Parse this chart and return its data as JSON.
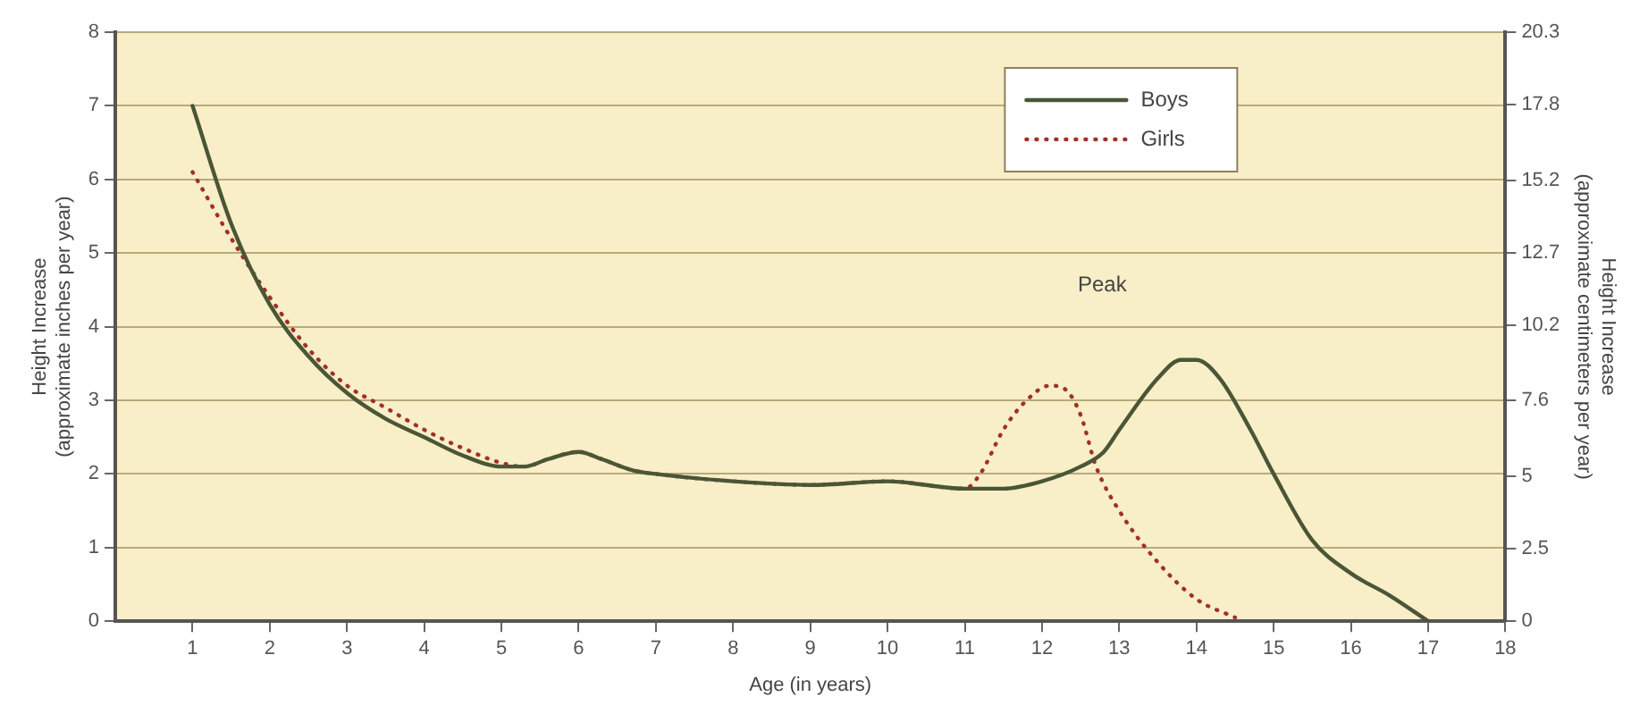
{
  "chart_data": {
    "type": "line",
    "xlabel": "Age (in years)",
    "ylabel": "Height Increase\n(approximate inches per year)",
    "y2label": "Height Increase\n(approximate centimeters per year)",
    "xlim": [
      0,
      18
    ],
    "xticks": [
      1,
      2,
      3,
      4,
      5,
      6,
      7,
      8,
      9,
      10,
      11,
      12,
      13,
      14,
      15,
      16,
      17,
      18
    ],
    "ylim": [
      0,
      8
    ],
    "yticks": [
      0,
      1,
      2,
      3,
      4,
      5,
      6,
      7,
      8
    ],
    "y2lim": [
      0,
      20.3
    ],
    "y2ticks": [
      0,
      2.5,
      5,
      7.6,
      10.2,
      12.7,
      15.2,
      17.8,
      20.3
    ],
    "grid": "y",
    "legend": "top right",
    "annotations": [
      "Peak"
    ],
    "series": [
      {
        "name": "Boys",
        "color": "#4a5636",
        "line_style": "solid",
        "x": [
          1,
          1.5,
          2,
          2.5,
          3,
          3.5,
          4,
          4.5,
          5,
          5.3,
          5.6,
          6,
          6.3,
          6.7,
          7,
          8,
          9,
          10,
          11,
          11.5,
          12,
          12.5,
          12.8,
          13,
          13.5,
          13.8,
          14,
          14.3,
          14.7,
          15,
          15.5,
          16,
          16.5,
          17
        ],
        "values": [
          7.0,
          5.4,
          4.3,
          3.6,
          3.1,
          2.75,
          2.5,
          2.25,
          2.1,
          2.1,
          2.2,
          2.3,
          2.2,
          2.05,
          2.0,
          1.9,
          1.85,
          1.9,
          1.8,
          1.8,
          1.9,
          2.1,
          2.3,
          2.6,
          3.3,
          3.55,
          3.55,
          3.3,
          2.6,
          2.0,
          1.1,
          0.65,
          0.35,
          0.0
        ]
      },
      {
        "name": "Girls",
        "color": "#a0302a",
        "line_style": "dotted",
        "x": [
          1,
          1.5,
          2,
          2.5,
          3,
          3.5,
          4,
          4.5,
          5,
          5.3,
          5.6,
          6,
          6.3,
          6.7,
          7,
          8,
          9,
          10,
          11,
          11.2,
          11.5,
          11.8,
          12.1,
          12.3,
          12.5,
          12.7,
          13,
          13.5,
          14,
          14.5
        ],
        "values": [
          6.1,
          5.2,
          4.4,
          3.7,
          3.2,
          2.9,
          2.6,
          2.35,
          2.15,
          2.1,
          2.2,
          2.3,
          2.2,
          2.05,
          2.0,
          1.9,
          1.85,
          1.9,
          1.8,
          2.0,
          2.6,
          3.0,
          3.2,
          3.15,
          2.8,
          2.1,
          1.5,
          0.8,
          0.3,
          0.05
        ]
      }
    ]
  }
}
